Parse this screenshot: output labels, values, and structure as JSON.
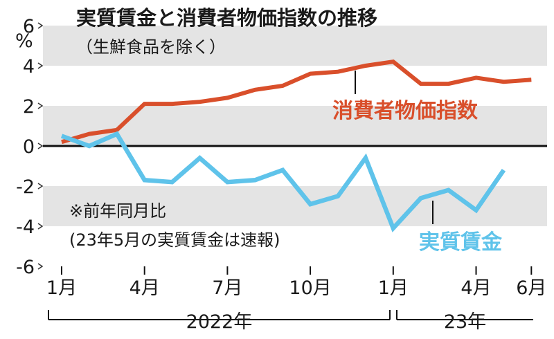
{
  "chart_data": {
    "type": "line",
    "title": "実質賃金と消費者物価指数の推移",
    "subtitle": "（生鮮食品を除く）",
    "y_unit": "%",
    "ylim": [
      -6,
      6
    ],
    "y_ticks": [
      "6",
      "4",
      "2",
      "0",
      "-2",
      "-4",
      "-6"
    ],
    "y_tick_values": [
      6,
      4,
      2,
      0,
      -2,
      -4,
      -6
    ],
    "x_ticks": [
      "1月",
      "4月",
      "7月",
      "10月",
      "1月",
      "4月",
      "6月"
    ],
    "x_tick_index": [
      0,
      3,
      6,
      9,
      12,
      15,
      17
    ],
    "year_labels": [
      {
        "label": "2022年",
        "from": 0,
        "to": 11
      },
      {
        "label": "23年",
        "from": 12,
        "to": 17
      }
    ],
    "months": [
      "2022-01",
      "2022-02",
      "2022-03",
      "2022-04",
      "2022-05",
      "2022-06",
      "2022-07",
      "2022-08",
      "2022-09",
      "2022-10",
      "2022-11",
      "2022-12",
      "2023-01",
      "2023-02",
      "2023-03",
      "2023-04",
      "2023-05",
      "2023-06"
    ],
    "grid_bands": [
      [
        4,
        6
      ],
      [
        0,
        2
      ],
      [
        -4,
        -2
      ]
    ],
    "series": [
      {
        "name": "消費者物価指数",
        "color": "#d94f2b",
        "values": [
          0.2,
          0.6,
          0.8,
          2.1,
          2.1,
          2.2,
          2.4,
          2.8,
          3.0,
          3.6,
          3.7,
          4.0,
          4.2,
          3.1,
          3.1,
          3.4,
          3.2,
          3.3
        ]
      },
      {
        "name": "実質賃金",
        "color": "#5fc3ea",
        "values": [
          0.5,
          0.0,
          0.6,
          -1.7,
          -1.8,
          -0.6,
          -1.8,
          -1.7,
          -1.2,
          -2.9,
          -2.5,
          -0.6,
          -4.1,
          -2.6,
          -2.2,
          -3.2,
          -1.2,
          null
        ]
      }
    ],
    "annotation": [
      "※前年同月比",
      "(23年5月の実質賃金は速報)"
    ]
  }
}
